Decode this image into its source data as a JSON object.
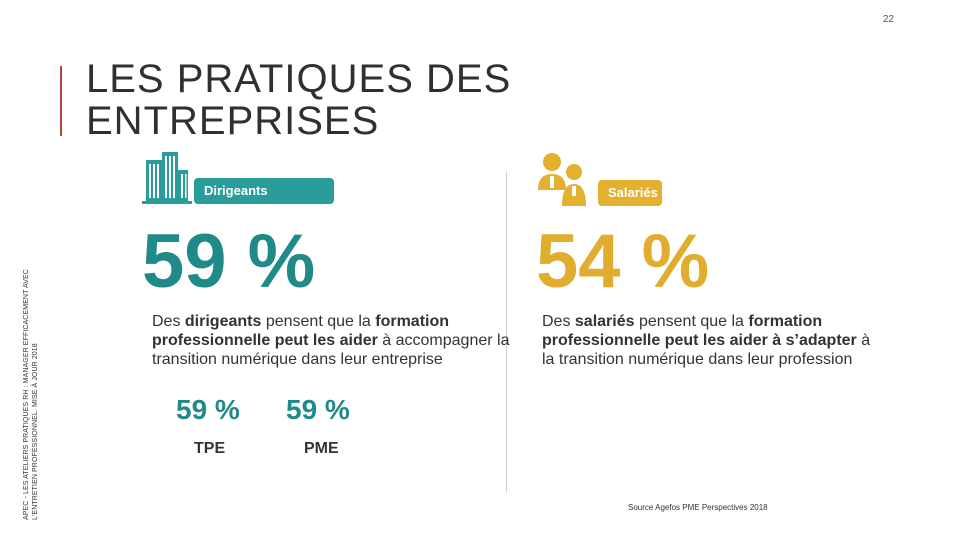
{
  "page_number": "22",
  "vertical_caption": {
    "line1": "APEC - LES ATELIERS PRATIQUES RH : MANAGER EFFICACEMENT AVEC",
    "line2": "L'ENTRETIEN PROFESSIONNEL. MISE À JOUR 2018"
  },
  "title": "LES PRATIQUES DES ENTREPRISES",
  "left": {
    "icon": "buildings-icon",
    "badge": "Dirigeants",
    "big_percent": "59 %",
    "description": {
      "p1": "Des ",
      "b1": "dirigeants",
      "p2": " pensent que la ",
      "b2": "formation professionnelle peut les aider",
      "p3": " à accompagner la transition numérique dans leur entreprise"
    },
    "sub": [
      {
        "percent": "59 %",
        "label": "TPE"
      },
      {
        "percent": "59 %",
        "label": "PME"
      }
    ],
    "accent_color": "#1f8a88"
  },
  "right": {
    "icon": "people-icon",
    "badge": "Salariés",
    "big_percent": "54 %",
    "description": {
      "p1": "Des ",
      "b1": "salariés",
      "p2": " pensent que la ",
      "b2": "formation professionnelle peut les aider à s’adapter",
      "p3": " à la transition numérique dans leur profession"
    },
    "accent_color": "#e0ad2e"
  },
  "source": "Source Agefos PME Perspectives 2018"
}
